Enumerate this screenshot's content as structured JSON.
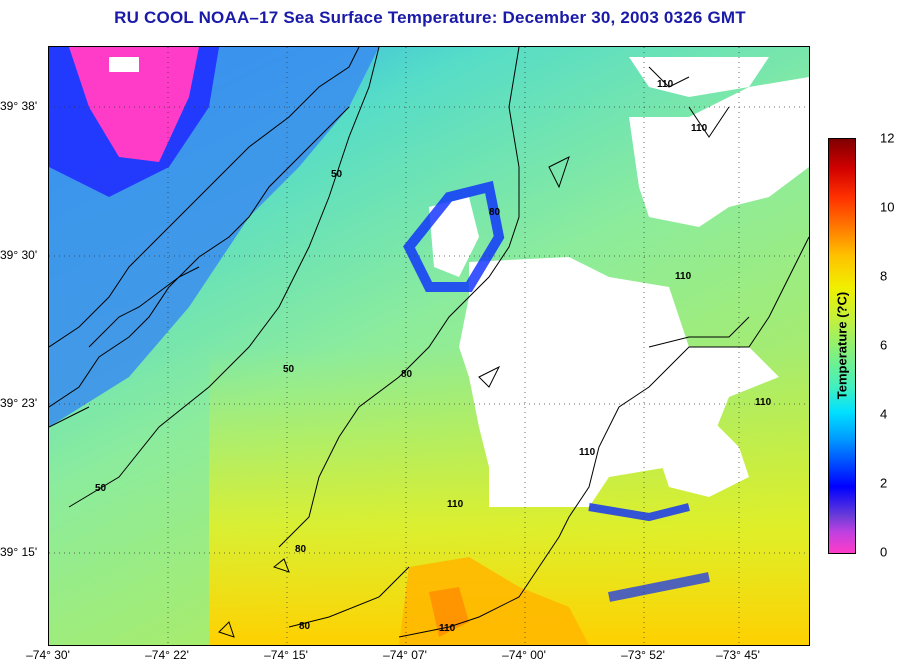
{
  "title": "RU COOL  NOAA–17  Sea Surface Temperature:  December 30, 2003 0326 GMT",
  "latitude_labels": [
    {
      "text": "39° 38'",
      "deg": 39.633
    },
    {
      "text": "39° 30'",
      "deg": 39.5
    },
    {
      "text": "39° 23'",
      "deg": 39.383
    },
    {
      "text": "39° 15'",
      "deg": 39.25
    }
  ],
  "longitude_labels": [
    {
      "text": "–74° 30'",
      "deg": -74.5
    },
    {
      "text": "–74° 22'",
      "deg": -74.367
    },
    {
      "text": "–74° 15'",
      "deg": -74.25
    },
    {
      "text": "–74° 07'",
      "deg": -74.117
    },
    {
      "text": "–74° 00'",
      "deg": -74.0
    },
    {
      "text": "–73° 52'",
      "deg": -73.867
    },
    {
      "text": "–73° 45'",
      "deg": -73.75
    }
  ],
  "colorbar": {
    "label": "Temperature (?C)",
    "min": 0,
    "max": 12,
    "ticks": [
      "0",
      "2",
      "4",
      "6",
      "8",
      "10",
      "12"
    ]
  },
  "contour_labels": [
    "50",
    "50",
    "50",
    "80",
    "80",
    "80",
    "80",
    "110",
    "110",
    "110",
    "110",
    "110",
    "110",
    "110"
  ],
  "colors": {
    "title": "#1a1aa8",
    "cloud": "#ffffff",
    "land_cold": "#ff3cc8",
    "deep_blue": "#0a2cff"
  }
}
